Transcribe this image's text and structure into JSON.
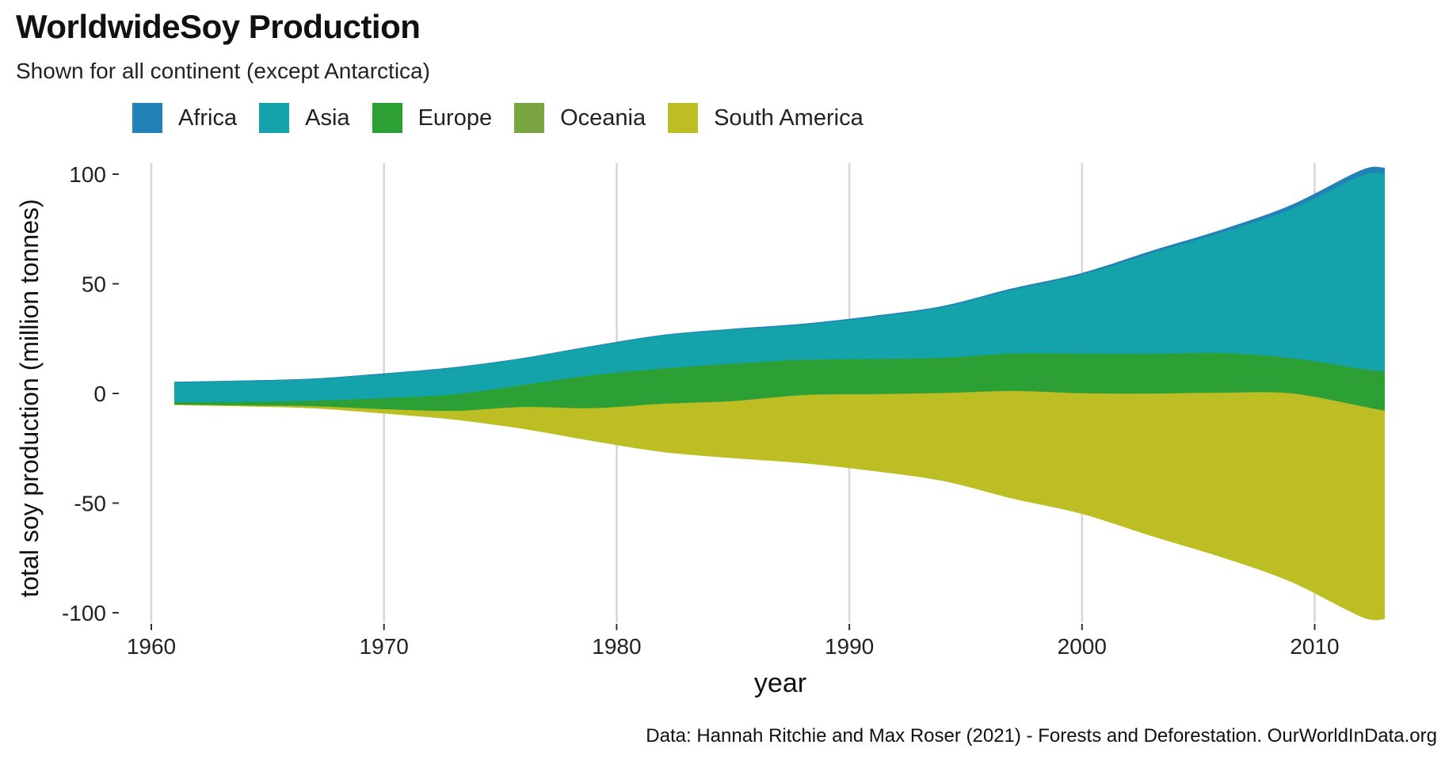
{
  "chart_data": {
    "type": "area",
    "title": "WorldwideSoy Production",
    "subtitle": "Shown for all continent (except Antarctica)",
    "xlabel": "year",
    "ylabel": "total soy production (million tonnes)",
    "caption": "Data: Hannah Ritchie and Max Roser (2021) - Forests and Deforestation. OurWorldInData.org",
    "xlim": [
      1961,
      2013
    ],
    "ylim": [
      -100,
      100
    ],
    "x_ticks": [
      1960,
      1970,
      1980,
      1990,
      2000,
      2010
    ],
    "y_ticks": [
      100,
      50,
      0,
      -50,
      -100
    ],
    "grid": "vertical major",
    "legend_position": "top",
    "x": [
      1961,
      1964,
      1967,
      1970,
      1973,
      1976,
      1979,
      1982,
      1985,
      1988,
      1991,
      1994,
      1997,
      2000,
      2003,
      2006,
      2009,
      2012,
      2013
    ],
    "series": [
      {
        "name": "Africa",
        "color": "#2281b7",
        "values": [
          0.05,
          0.05,
          0.05,
          0.05,
          0.05,
          0.05,
          0.1,
          0.1,
          0.15,
          0.2,
          0.3,
          0.35,
          0.4,
          0.5,
          0.8,
          1.0,
          1.6,
          2.3,
          2.5
        ]
      },
      {
        "name": "Asia",
        "color": "#14a3ab",
        "values": [
          9,
          9.5,
          9.8,
          11,
          12,
          12,
          13,
          15,
          15.5,
          16,
          19,
          23,
          29,
          36,
          46,
          55,
          68,
          88,
          90
        ]
      },
      {
        "name": "Europe",
        "color": "#2ca034",
        "values": [
          1,
          1.5,
          2.5,
          5,
          7.5,
          10,
          15,
          16,
          17,
          16,
          16,
          16,
          17,
          18,
          18,
          18,
          16,
          17,
          18
        ]
      },
      {
        "name": "Oceania",
        "color": "#79a640",
        "values": [
          0.01,
          0.01,
          0.01,
          0.02,
          0.05,
          0.1,
          0.1,
          0.1,
          0.1,
          0.1,
          0.1,
          0.1,
          0.1,
          0.1,
          0.1,
          0.1,
          0.1,
          0.1,
          0.1
        ]
      },
      {
        "name": "South America",
        "color": "#bdbe24",
        "values": [
          0.3,
          0.5,
          1,
          2,
          4,
          10,
          15,
          22,
          26,
          31,
          35,
          40,
          49,
          55,
          65,
          75,
          86,
          96,
          95
        ]
      }
    ]
  }
}
